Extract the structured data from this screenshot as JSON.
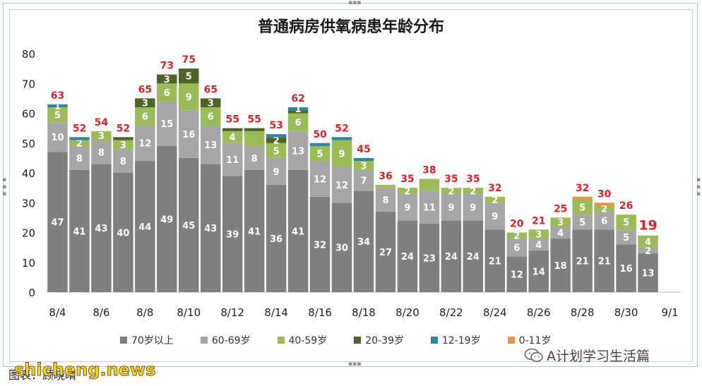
{
  "chart_data": {
    "type": "bar",
    "stacked": true,
    "title": "普通病房供氧病患年龄分布",
    "ylim": [
      0,
      80
    ],
    "yticks": [
      0,
      10,
      20,
      30,
      40,
      50,
      60,
      70,
      80
    ],
    "categories": [
      "8/4",
      "8/5",
      "8/6",
      "8/7",
      "8/8",
      "8/9",
      "8/10",
      "8/11",
      "8/12",
      "8/13",
      "8/14",
      "8/15",
      "8/16",
      "8/17",
      "8/18",
      "8/19",
      "8/20",
      "8/21",
      "8/22",
      "8/23",
      "8/24",
      "8/25",
      "8/26",
      "8/27",
      "8/28",
      "8/29",
      "8/30",
      "8/31",
      "9/1"
    ],
    "x_tick_labels": [
      "8/4",
      "8/6",
      "8/8",
      "8/10",
      "8/12",
      "8/14",
      "8/16",
      "8/18",
      "8/20",
      "8/22",
      "8/24",
      "8/26",
      "8/28",
      "8/30",
      "9/1"
    ],
    "series": [
      {
        "name": "70岁以上",
        "color": "#7f7f7f",
        "label_color": "#ffffff",
        "values": [
          47,
          41,
          43,
          40,
          44,
          49,
          45,
          43,
          39,
          41,
          36,
          41,
          32,
          30,
          34,
          27,
          24,
          23,
          24,
          24,
          21,
          12,
          14,
          18,
          21,
          21,
          16,
          13,
          null
        ]
      },
      {
        "name": "60-69岁",
        "color": "#a6a6a6",
        "label_color": "#ffffff",
        "values": [
          10,
          8,
          8,
          8,
          12,
          15,
          16,
          13,
          11,
          8,
          9,
          13,
          12,
          12,
          7,
          8,
          9,
          11,
          9,
          9,
          9,
          6,
          4,
          4,
          5,
          6,
          5,
          2,
          null
        ]
      },
      {
        "name": "40-59岁",
        "color": "#9bbb59",
        "label_color": "#ffffff",
        "values": [
          5,
          2,
          3,
          3,
          6,
          6,
          9,
          6,
          4,
          5,
          5,
          6,
          5,
          9,
          3,
          1,
          2,
          4,
          2,
          2,
          2,
          2,
          3,
          3,
          5,
          2,
          5,
          4,
          null
        ]
      },
      {
        "name": "20-39岁",
        "color": "#4f6228",
        "label_color": "#ffffff",
        "values": [
          0,
          0,
          0,
          1,
          3,
          3,
          5,
          3,
          1,
          1,
          2,
          1,
          0,
          0,
          0,
          0,
          0,
          0,
          0,
          0,
          0,
          0,
          0,
          0,
          0,
          0,
          0,
          0,
          null
        ]
      },
      {
        "name": "12-19岁",
        "color": "#31859c",
        "label_color": "#ffffff",
        "values": [
          1,
          1,
          0,
          0,
          0,
          0,
          0,
          0,
          0,
          0,
          1,
          1,
          1,
          1,
          1,
          0,
          0,
          0,
          0,
          0,
          0,
          0,
          0,
          0,
          0,
          0,
          0,
          0,
          null
        ]
      },
      {
        "name": "0-11岁",
        "color": "#e6954d",
        "label_color": "#ffffff",
        "values": [
          0,
          0,
          0,
          0,
          0,
          0,
          0,
          0,
          0,
          0,
          0,
          0,
          0,
          0,
          0,
          0,
          0,
          0,
          0,
          0,
          0,
          0,
          0,
          0,
          1,
          1,
          0,
          0,
          null
        ]
      }
    ],
    "segment_labels": [
      [
        "47",
        "10",
        "5",
        "",
        "1",
        ""
      ],
      [
        "41",
        "8",
        "2",
        "",
        "",
        ""
      ],
      [
        "43",
        "8",
        "3",
        "",
        "",
        ""
      ],
      [
        "40",
        "8",
        "3",
        "",
        "",
        ""
      ],
      [
        "44",
        "12",
        "6",
        "3",
        "",
        ""
      ],
      [
        "49",
        "15",
        "6",
        "3",
        "",
        ""
      ],
      [
        "45",
        "16",
        "9",
        "5",
        "",
        ""
      ],
      [
        "43",
        "13",
        "6",
        "3",
        "",
        ""
      ],
      [
        "39",
        "11",
        "4",
        "",
        "",
        ""
      ],
      [
        "41",
        "8",
        "",
        "",
        "",
        ""
      ],
      [
        "36",
        "9",
        "5",
        "2",
        "",
        ""
      ],
      [
        "41",
        "13",
        "6",
        "",
        "1",
        ""
      ],
      [
        "32",
        "12",
        "5",
        "",
        "",
        ""
      ],
      [
        "30",
        "12",
        "9",
        "",
        "",
        ""
      ],
      [
        "34",
        "7",
        "3",
        "",
        "",
        ""
      ],
      [
        "27",
        "8",
        "",
        "",
        "",
        ""
      ],
      [
        "24",
        "9",
        "2",
        "",
        "",
        ""
      ],
      [
        "23",
        "11",
        "",
        "",
        "",
        ""
      ],
      [
        "24",
        "9",
        "2",
        "",
        "",
        ""
      ],
      [
        "24",
        "9",
        "2",
        "",
        "",
        ""
      ],
      [
        "21",
        "9",
        "2",
        "",
        "",
        ""
      ],
      [
        "12",
        "6",
        "2",
        "",
        "",
        ""
      ],
      [
        "14",
        "4",
        "3",
        "",
        "",
        ""
      ],
      [
        "18",
        "4",
        "3",
        "",
        "",
        ""
      ],
      [
        "21",
        "5",
        "5",
        "",
        "",
        ""
      ],
      [
        "21",
        "6",
        "2",
        "",
        "",
        ""
      ],
      [
        "16",
        "5",
        "5",
        "",
        "",
        ""
      ],
      [
        "13",
        "2",
        "4",
        "",
        "",
        ""
      ],
      [
        "",
        "",
        "",
        "",
        "",
        ""
      ]
    ],
    "totals": [
      63,
      52,
      54,
      52,
      65,
      73,
      75,
      65,
      55,
      55,
      53,
      62,
      50,
      52,
      45,
      36,
      35,
      38,
      35,
      35,
      32,
      20,
      21,
      25,
      32,
      30,
      26,
      19,
      null
    ],
    "total_label_color": "#d9232a",
    "legend_position": "bottom"
  },
  "legend": [
    {
      "label": "70岁以上",
      "color": "#7f7f7f"
    },
    {
      "label": "60-69岁",
      "color": "#a6a6a6"
    },
    {
      "label": "40-59岁",
      "color": "#9bbb59"
    },
    {
      "label": "20-39岁",
      "color": "#4f6228"
    },
    {
      "label": "12-19岁",
      "color": "#31859c"
    },
    {
      "label": "0-11岁",
      "color": "#e6954d"
    }
  ],
  "watermark": {
    "text": "A计划学习生活篇",
    "icon": "wechat-icon"
  },
  "source": {
    "text": "图表：顾晓晴"
  },
  "brand": {
    "text": "shicheng.news"
  }
}
